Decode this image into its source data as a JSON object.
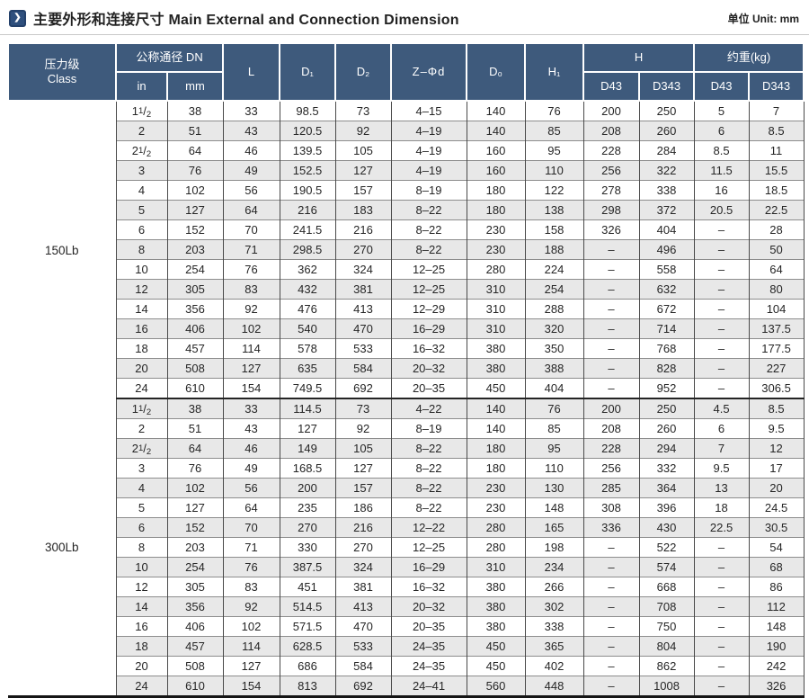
{
  "header": {
    "title_zh": "主要外形和连接尺寸",
    "title_en": "Main External and Connection Dimension",
    "unit_label": "单位 Unit: mm",
    "icon_glyph": "❯"
  },
  "colors": {
    "header_bg": "#3e5a7c",
    "stripe": "#e8e8e8",
    "accent_blue": "#2e4f7d"
  },
  "table": {
    "head": {
      "class_zh": "压力级",
      "class_en": "Class",
      "dn": "公称通径 DN",
      "in": "in",
      "mm": "mm",
      "l": "L",
      "d1": "D₁",
      "d2": "D₂",
      "zphid": "Z–Φd",
      "d0": "D₀",
      "h1": "H₁",
      "h": "H",
      "weight": "约重(kg)",
      "d43": "D43",
      "d343": "D343"
    },
    "sections": [
      {
        "label": "150Lb",
        "rows": [
          [
            "1 1/2",
            "38",
            "33",
            "98.5",
            "73",
            "4–15",
            "140",
            "76",
            "200",
            "250",
            "5",
            "7"
          ],
          [
            "2",
            "51",
            "43",
            "120.5",
            "92",
            "4–19",
            "140",
            "85",
            "208",
            "260",
            "6",
            "8.5"
          ],
          [
            "2 1/2",
            "64",
            "46",
            "139.5",
            "105",
            "4–19",
            "160",
            "95",
            "228",
            "284",
            "8.5",
            "11"
          ],
          [
            "3",
            "76",
            "49",
            "152.5",
            "127",
            "4–19",
            "160",
            "110",
            "256",
            "322",
            "11.5",
            "15.5"
          ],
          [
            "4",
            "102",
            "56",
            "190.5",
            "157",
            "8–19",
            "180",
            "122",
            "278",
            "338",
            "16",
            "18.5"
          ],
          [
            "5",
            "127",
            "64",
            "216",
            "183",
            "8–22",
            "180",
            "138",
            "298",
            "372",
            "20.5",
            "22.5"
          ],
          [
            "6",
            "152",
            "70",
            "241.5",
            "216",
            "8–22",
            "230",
            "158",
            "326",
            "404",
            "–",
            "28"
          ],
          [
            "8",
            "203",
            "71",
            "298.5",
            "270",
            "8–22",
            "230",
            "188",
            "–",
            "496",
            "–",
            "50"
          ],
          [
            "10",
            "254",
            "76",
            "362",
            "324",
            "12–25",
            "280",
            "224",
            "–",
            "558",
            "–",
            "64"
          ],
          [
            "12",
            "305",
            "83",
            "432",
            "381",
            "12–25",
            "310",
            "254",
            "–",
            "632",
            "–",
            "80"
          ],
          [
            "14",
            "356",
            "92",
            "476",
            "413",
            "12–29",
            "310",
            "288",
            "–",
            "672",
            "–",
            "104"
          ],
          [
            "16",
            "406",
            "102",
            "540",
            "470",
            "16–29",
            "310",
            "320",
            "–",
            "714",
            "–",
            "137.5"
          ],
          [
            "18",
            "457",
            "114",
            "578",
            "533",
            "16–32",
            "380",
            "350",
            "–",
            "768",
            "–",
            "177.5"
          ],
          [
            "20",
            "508",
            "127",
            "635",
            "584",
            "20–32",
            "380",
            "388",
            "–",
            "828",
            "–",
            "227"
          ],
          [
            "24",
            "610",
            "154",
            "749.5",
            "692",
            "20–35",
            "450",
            "404",
            "–",
            "952",
            "–",
            "306.5"
          ]
        ]
      },
      {
        "label": "300Lb",
        "rows": [
          [
            "1 1/2",
            "38",
            "33",
            "114.5",
            "73",
            "4–22",
            "140",
            "76",
            "200",
            "250",
            "4.5",
            "8.5"
          ],
          [
            "2",
            "51",
            "43",
            "127",
            "92",
            "8–19",
            "140",
            "85",
            "208",
            "260",
            "6",
            "9.5"
          ],
          [
            "2 1/2",
            "64",
            "46",
            "149",
            "105",
            "8–22",
            "180",
            "95",
            "228",
            "294",
            "7",
            "12"
          ],
          [
            "3",
            "76",
            "49",
            "168.5",
            "127",
            "8–22",
            "180",
            "110",
            "256",
            "332",
            "9.5",
            "17"
          ],
          [
            "4",
            "102",
            "56",
            "200",
            "157",
            "8–22",
            "230",
            "130",
            "285",
            "364",
            "13",
            "20"
          ],
          [
            "5",
            "127",
            "64",
            "235",
            "186",
            "8–22",
            "230",
            "148",
            "308",
            "396",
            "18",
            "24.5"
          ],
          [
            "6",
            "152",
            "70",
            "270",
            "216",
            "12–22",
            "280",
            "165",
            "336",
            "430",
            "22.5",
            "30.5"
          ],
          [
            "8",
            "203",
            "71",
            "330",
            "270",
            "12–25",
            "280",
            "198",
            "–",
            "522",
            "–",
            "54"
          ],
          [
            "10",
            "254",
            "76",
            "387.5",
            "324",
            "16–29",
            "310",
            "234",
            "–",
            "574",
            "–",
            "68"
          ],
          [
            "12",
            "305",
            "83",
            "451",
            "381",
            "16–32",
            "380",
            "266",
            "–",
            "668",
            "–",
            "86"
          ],
          [
            "14",
            "356",
            "92",
            "514.5",
            "413",
            "20–32",
            "380",
            "302",
            "–",
            "708",
            "–",
            "112"
          ],
          [
            "16",
            "406",
            "102",
            "571.5",
            "470",
            "20–35",
            "380",
            "338",
            "–",
            "750",
            "–",
            "148"
          ],
          [
            "18",
            "457",
            "114",
            "628.5",
            "533",
            "24–35",
            "450",
            "365",
            "–",
            "804",
            "–",
            "190"
          ],
          [
            "20",
            "508",
            "127",
            "686",
            "584",
            "24–35",
            "450",
            "402",
            "–",
            "862",
            "–",
            "242"
          ],
          [
            "24",
            "610",
            "154",
            "813",
            "692",
            "24–41",
            "560",
            "448",
            "–",
            "1008",
            "–",
            "326"
          ]
        ]
      }
    ]
  }
}
